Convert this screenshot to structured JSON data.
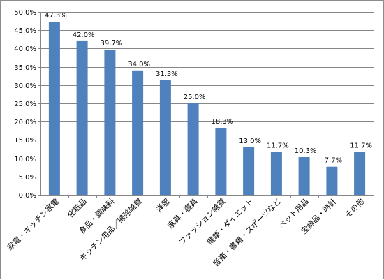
{
  "chart_data": {
    "type": "bar",
    "categories": [
      "家電・キッチン家電",
      "化粧品",
      "食品・調味料",
      "キッチン用品／掃除雑貨",
      "洋服",
      "家具・寝具",
      "ファッション雑貨",
      "健康・ダイエット",
      "音楽・書籍・スポーツなど",
      "ペット用品",
      "宝飾品・時計",
      "その他"
    ],
    "values": [
      47.3,
      42.0,
      39.7,
      34.0,
      31.3,
      25.0,
      18.3,
      13.0,
      11.7,
      10.3,
      7.7,
      11.7
    ],
    "data_labels": [
      "47.3%",
      "42.0%",
      "39.7%",
      "34.0%",
      "31.3%",
      "25.0%",
      "18.3%",
      "13.0%",
      "11.7%",
      "10.3%",
      "7.7%",
      "11.7%"
    ],
    "ylim": [
      0,
      50
    ],
    "yticks": [
      0,
      5,
      10,
      15,
      20,
      25,
      30,
      35,
      40,
      45,
      50
    ],
    "ytick_labels": [
      "0.0%",
      "5.0%",
      "10.0%",
      "15.0%",
      "20.0%",
      "25.0%",
      "30.0%",
      "35.0%",
      "40.0%",
      "45.0%",
      "50.0%"
    ],
    "title": "",
    "xlabel": "",
    "ylabel": "",
    "grid": true,
    "legend": "none",
    "bar_color": "#4f81bd",
    "grid_color": "#868686"
  }
}
